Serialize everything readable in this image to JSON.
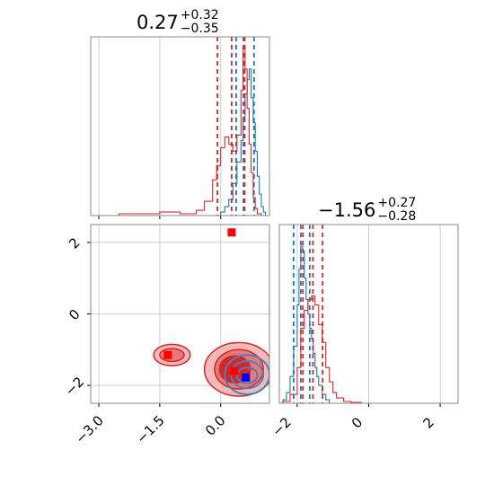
{
  "chart_data": [
    {
      "panel": "histogram-param-1",
      "type": "histogram",
      "title": {
        "value": "0.27",
        "upper": "+0.32",
        "lower": "−0.35"
      },
      "xlim": [
        -3.2,
        1.2
      ],
      "grid": true,
      "series": [
        {
          "color": "#1f77b4",
          "bins_x": [
            -0.2,
            0.0,
            0.1,
            0.2,
            0.3,
            0.4,
            0.5,
            0.55,
            0.6,
            0.65,
            0.7,
            0.75,
            0.8,
            0.85,
            0.9,
            0.95,
            1.0,
            1.05,
            1.1,
            1.2
          ],
          "counts": [
            0.0,
            0.02,
            0.05,
            0.09,
            0.18,
            0.3,
            0.42,
            0.55,
            0.68,
            0.76,
            0.82,
            0.66,
            0.52,
            0.36,
            0.22,
            0.12,
            0.05,
            0.02,
            0.0
          ],
          "quantile_lines": [
            0.38,
            0.56,
            0.82
          ]
        },
        {
          "color": "#d62728",
          "bins_x": [
            -3.2,
            -2.5,
            -2.0,
            -1.5,
            -1.0,
            -0.6,
            -0.4,
            -0.2,
            -0.1,
            0.0,
            0.1,
            0.2,
            0.3,
            0.4,
            0.5,
            0.55,
            0.6,
            0.65,
            0.7,
            0.75,
            0.8,
            0.85,
            0.9,
            1.0,
            1.2
          ],
          "counts": [
            0.0,
            0.01,
            0.01,
            0.02,
            0.01,
            0.03,
            0.08,
            0.2,
            0.28,
            0.38,
            0.44,
            0.4,
            0.36,
            0.45,
            0.7,
            0.95,
            0.82,
            0.6,
            0.4,
            0.24,
            0.1,
            0.04,
            0.01,
            0.0
          ],
          "quantile_lines": [
            -0.08,
            0.27,
            0.59
          ]
        }
      ]
    },
    {
      "panel": "histogram-param-2",
      "type": "histogram",
      "title": {
        "value": "−1.56",
        "upper": "+0.27",
        "lower": "−0.28"
      },
      "xlim": [
        -2.5,
        2.5
      ],
      "xticks": [
        -2,
        0,
        2
      ],
      "grid": true,
      "series": [
        {
          "color": "#1f77b4",
          "bins_x": [
            -2.4,
            -2.3,
            -2.2,
            -2.1,
            -2.0,
            -1.95,
            -1.9,
            -1.85,
            -1.8,
            -1.75,
            -1.7,
            -1.65,
            -1.6,
            -1.55,
            -1.5,
            -1.45,
            -1.4,
            -1.3,
            -1.2,
            -1.1,
            -1.0
          ],
          "counts": [
            0.02,
            0.06,
            0.15,
            0.32,
            0.55,
            0.75,
            0.88,
            0.85,
            0.7,
            0.58,
            0.5,
            0.42,
            0.36,
            0.28,
            0.2,
            0.15,
            0.1,
            0.05,
            0.02,
            0.0
          ],
          "quantile_lines": [
            -2.1,
            -1.9,
            -1.65
          ]
        },
        {
          "color": "#d62728",
          "bins_x": [
            -2.4,
            -2.2,
            -2.0,
            -1.9,
            -1.8,
            -1.7,
            -1.6,
            -1.5,
            -1.4,
            -1.3,
            -1.2,
            -1.1,
            -1.0,
            -0.9,
            -0.7,
            -0.5,
            -0.2,
            0.0
          ],
          "counts": [
            0.01,
            0.05,
            0.2,
            0.42,
            0.52,
            0.58,
            0.6,
            0.55,
            0.44,
            0.34,
            0.2,
            0.12,
            0.06,
            0.03,
            0.01,
            0.005,
            0.0
          ],
          "quantile_lines": [
            -1.84,
            -1.56,
            -1.29
          ]
        }
      ]
    },
    {
      "panel": "joint-2d",
      "type": "scatter",
      "xlim": [
        -3.2,
        1.2
      ],
      "ylim": [
        -2.5,
        2.5
      ],
      "xticks": [
        -3.0,
        -1.5,
        0.0
      ],
      "yticks": [
        2,
        0,
        -2
      ],
      "grid": true,
      "red_contours": [
        {
          "cx": -1.2,
          "cy": -1.15,
          "rx": 0.45,
          "ry": 0.3,
          "level": 1
        },
        {
          "cx": -1.2,
          "cy": -1.15,
          "rx": 0.3,
          "ry": 0.18,
          "level": 2
        },
        {
          "cx": 0.45,
          "cy": -1.55,
          "rx": 0.85,
          "ry": 0.75,
          "level": 1
        },
        {
          "cx": 0.45,
          "cy": -1.55,
          "rx": 0.6,
          "ry": 0.55,
          "level": 2
        },
        {
          "cx": 0.35,
          "cy": -1.55,
          "rx": 0.38,
          "ry": 0.38,
          "level": 3
        }
      ],
      "blue_contours": [
        {
          "cx": 0.65,
          "cy": -1.7,
          "rx": 0.55,
          "ry": 0.55
        },
        {
          "cx": 0.65,
          "cy": -1.7,
          "rx": 0.4,
          "ry": 0.38
        },
        {
          "cx": 0.65,
          "cy": -1.72,
          "rx": 0.25,
          "ry": 0.22
        }
      ],
      "markers": [
        {
          "x": 0.27,
          "y": 2.28,
          "color": "#ff0000"
        },
        {
          "x": -1.3,
          "y": -1.15,
          "color": "#ff0000"
        },
        {
          "x": 0.33,
          "y": -1.6,
          "color": "#ff0000"
        },
        {
          "x": 0.62,
          "y": -1.78,
          "color": "#0000ff"
        }
      ]
    }
  ]
}
